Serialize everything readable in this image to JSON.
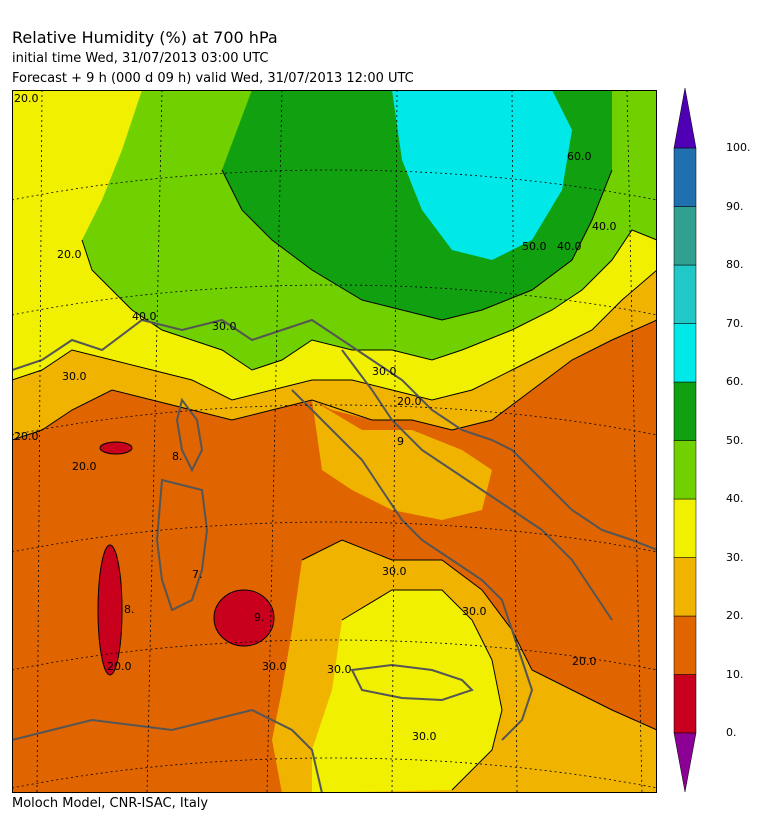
{
  "header": {
    "title": "Relative Humidity (%) at 700 hPa",
    "initial_time": "initial time  Wed, 31/07/2013  03:00 UTC",
    "forecast": "Forecast  +   9 h  (000 d 09 h)  valid Wed, 31/07/2013 12:00 UTC"
  },
  "footer": "Moloch Model, CNR-ISAC, Italy",
  "colorbar": {
    "ticks": [
      "0.",
      "10.",
      "20.",
      "30.",
      "40.",
      "50.",
      "60.",
      "70.",
      "80.",
      "90.",
      "100."
    ],
    "colors": [
      "#c8001e",
      "#e06400",
      "#f0b400",
      "#f0f000",
      "#70d000",
      "#10a010",
      "#00e8e8",
      "#20c8c8",
      "#30a090",
      "#2070b0"
    ],
    "under_color": "#8c0096",
    "over_color": "#5000b4"
  },
  "map": {
    "contour_labels": [
      "20.0",
      "20.0",
      "20.0",
      "30.0",
      "30.0",
      "30.0",
      "30.0",
      "30.0",
      "30.0",
      "30.0",
      "40.0",
      "40.0",
      "40.0",
      "50.0",
      "60.0",
      "20.0",
      "20.0",
      "20.0",
      "8.",
      "9.",
      "9",
      "7.",
      "8.",
      "20.0",
      "30.0"
    ]
  }
}
